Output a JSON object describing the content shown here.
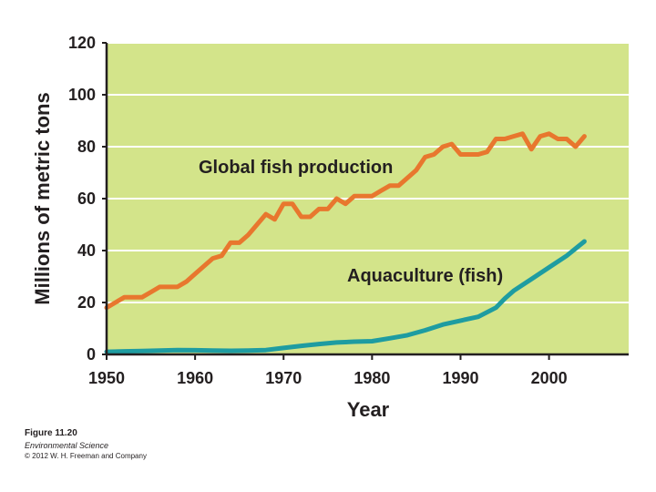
{
  "colors": {
    "plot_background": "#d3e48a",
    "gridline": "#ffffff",
    "axis": "#231f20",
    "global_series": "#e8772e",
    "aquaculture_series": "#1e9ca1"
  },
  "chart_data": {
    "type": "line",
    "xlabel": "Year",
    "ylabel": "Millions of metric tons",
    "xlim": [
      1950,
      2009
    ],
    "ylim": [
      0,
      120
    ],
    "xticks": [
      "1950",
      "1960",
      "1970",
      "1980",
      "1990",
      "2000"
    ],
    "yticks": [
      "0",
      "20",
      "40",
      "60",
      "80",
      "100",
      "120"
    ],
    "grid": true,
    "series": [
      {
        "name": "Global fish production",
        "x": [
          1950,
          1951,
          1952,
          1953,
          1954,
          1955,
          1956,
          1957,
          1958,
          1959,
          1960,
          1961,
          1962,
          1963,
          1964,
          1965,
          1966,
          1967,
          1968,
          1969,
          1970,
          1971,
          1972,
          1973,
          1974,
          1975,
          1976,
          1977,
          1978,
          1979,
          1980,
          1981,
          1982,
          1983,
          1984,
          1985,
          1986,
          1987,
          1988,
          1989,
          1990,
          1991,
          1992,
          1993,
          1994,
          1995,
          1996,
          1997,
          1998,
          1999,
          2000,
          2001,
          2002,
          2003,
          2004
        ],
        "y": [
          18,
          20,
          22,
          22,
          22,
          24,
          26,
          26,
          26,
          28,
          31,
          34,
          37,
          38,
          43,
          43,
          46,
          50,
          54,
          52,
          58,
          58,
          53,
          53,
          56,
          56,
          60,
          58,
          61,
          61,
          61,
          63,
          65,
          65,
          68,
          71,
          76,
          77,
          80,
          81,
          77,
          77,
          77,
          78,
          83,
          83,
          84,
          85,
          79,
          84,
          85,
          83,
          83,
          80,
          84
        ]
      },
      {
        "name": "Aquaculture (fish)",
        "x": [
          1950,
          1952,
          1954,
          1956,
          1958,
          1960,
          1962,
          1964,
          1966,
          1968,
          1970,
          1972,
          1974,
          1976,
          1978,
          1980,
          1982,
          1984,
          1986,
          1988,
          1990,
          1992,
          1994,
          1995,
          1996,
          1998,
          2000,
          2002,
          2004
        ],
        "y": [
          1.0,
          1.2,
          1.3,
          1.5,
          1.7,
          1.6,
          1.5,
          1.4,
          1.5,
          1.7,
          2.5,
          3.3,
          4.0,
          4.6,
          4.9,
          5.1,
          6.2,
          7.4,
          9.3,
          11.5,
          13.0,
          14.5,
          18.0,
          21.5,
          24.5,
          29.0,
          33.5,
          38.0,
          43.5
        ]
      }
    ]
  },
  "caption": {
    "figure": "Figure 11.20",
    "book": "Environmental Science",
    "copyright": "© 2012 W. H. Freeman and Company"
  }
}
